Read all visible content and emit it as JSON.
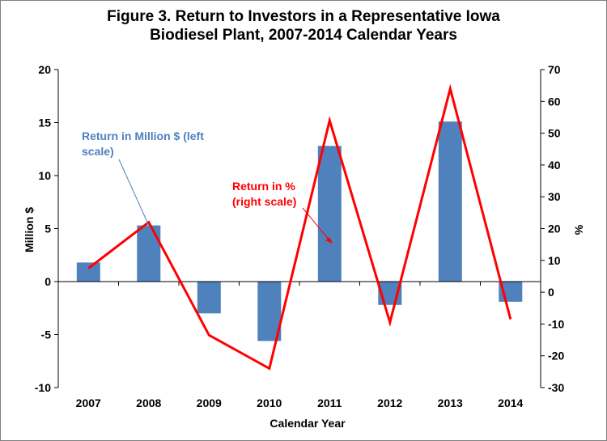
{
  "chart_data": {
    "type": "bar+line",
    "title_line1": "Figure 3. Return to Investors in a Representative Iowa",
    "title_line2": "Biodiesel Plant, 2007-2014  Calendar Years",
    "xlabel": "Calendar Year",
    "ylabel_left": "Million $",
    "ylabel_right": "%",
    "categories": [
      "2007",
      "2008",
      "2009",
      "2010",
      "2011",
      "2012",
      "2013",
      "2014"
    ],
    "ylim_left": [
      -10,
      20
    ],
    "ylim_right": [
      -30,
      70
    ],
    "yticks_left": [
      "20",
      "15",
      "10",
      "5",
      "0",
      "-5",
      "-10"
    ],
    "yticks_right": [
      "70",
      "60",
      "50",
      "40",
      "30",
      "20",
      "10",
      "0",
      "-10",
      "-20",
      "-30"
    ],
    "grid": false,
    "series": [
      {
        "name": "Return in Million $ (left scale)",
        "type": "bar",
        "axis": "left",
        "color": "#4f81bd",
        "values": [
          1.8,
          5.3,
          -3.0,
          -5.6,
          12.8,
          -2.2,
          15.1,
          -1.9
        ]
      },
      {
        "name": "Return in % (right scale)",
        "type": "line",
        "axis": "right",
        "color": "#ff0000",
        "values": [
          7.5,
          22.0,
          -13.5,
          -24.0,
          54.0,
          -9.5,
          64.0,
          -8.5
        ]
      }
    ],
    "annotations": {
      "bar_label_line1": "Return in Million $ (left",
      "bar_label_line2": "scale)",
      "line_label_line1": "Return in %",
      "line_label_line2": "(right scale)"
    }
  }
}
